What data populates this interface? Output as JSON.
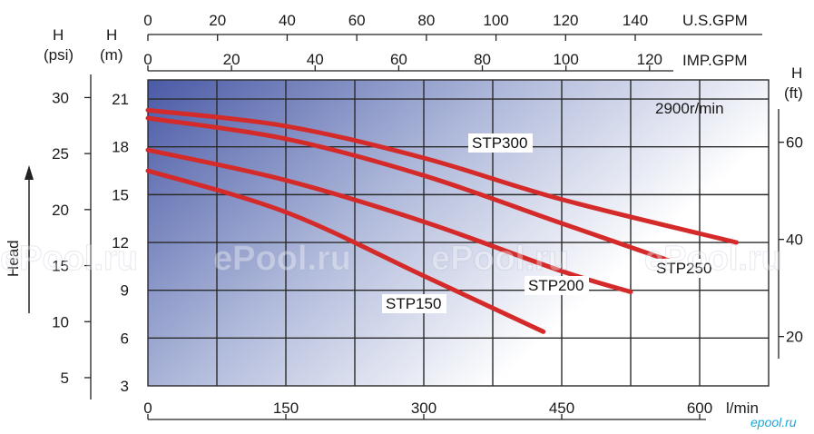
{
  "chart_data": {
    "type": "line",
    "rpm_label": "2900r/min",
    "x": {
      "label": "l/min",
      "ticks": [
        0,
        150,
        300,
        450,
        600
      ],
      "range": [
        0,
        675
      ]
    },
    "y": {
      "label_line1": "H",
      "label_line2": "(m)",
      "ticks": [
        3,
        6,
        9,
        12,
        15,
        18,
        21
      ],
      "range": [
        3,
        22.2
      ]
    },
    "top_axis_usgpm": {
      "label": "U.S.GPM",
      "ticks": [
        0,
        20,
        40,
        60,
        80,
        100,
        120,
        140
      ]
    },
    "top_axis_impgpm": {
      "label": "IMP.GPM",
      "ticks": [
        0,
        20,
        40,
        60,
        80,
        100,
        120
      ]
    },
    "left_axis_psi": {
      "label_line1": "H",
      "label_line2": "(psi)",
      "ticks": [
        5,
        10,
        15,
        20,
        25,
        30
      ]
    },
    "right_axis_ft": {
      "label_line1": "H",
      "label_line2": "(ft)",
      "ticks": [
        20,
        40,
        60
      ]
    },
    "head_label": "Head",
    "series": [
      {
        "name": "STP300",
        "x": [
          0,
          150,
          300,
          450,
          640
        ],
        "y": [
          20.3,
          19.3,
          17.3,
          14.7,
          12.0
        ]
      },
      {
        "name": "STP250",
        "x": [
          0,
          150,
          300,
          450,
          600
        ],
        "y": [
          19.8,
          18.5,
          16.2,
          13.2,
          10.2
        ]
      },
      {
        "name": "STP200",
        "x": [
          0,
          150,
          300,
          450,
          525
        ],
        "y": [
          17.8,
          15.9,
          13.3,
          10.2,
          8.9
        ]
      },
      {
        "name": "STP150",
        "x": [
          0,
          150,
          300,
          430
        ],
        "y": [
          16.5,
          13.9,
          9.9,
          6.4
        ]
      }
    ],
    "watermark": "ePool.ru",
    "corner_mark": "epool.ru",
    "colors": {
      "curve": "#d42a2a",
      "grid": "#2a2a2a",
      "gradient_dark": "#4a5aa6",
      "gradient_light": "#ffffff"
    }
  }
}
